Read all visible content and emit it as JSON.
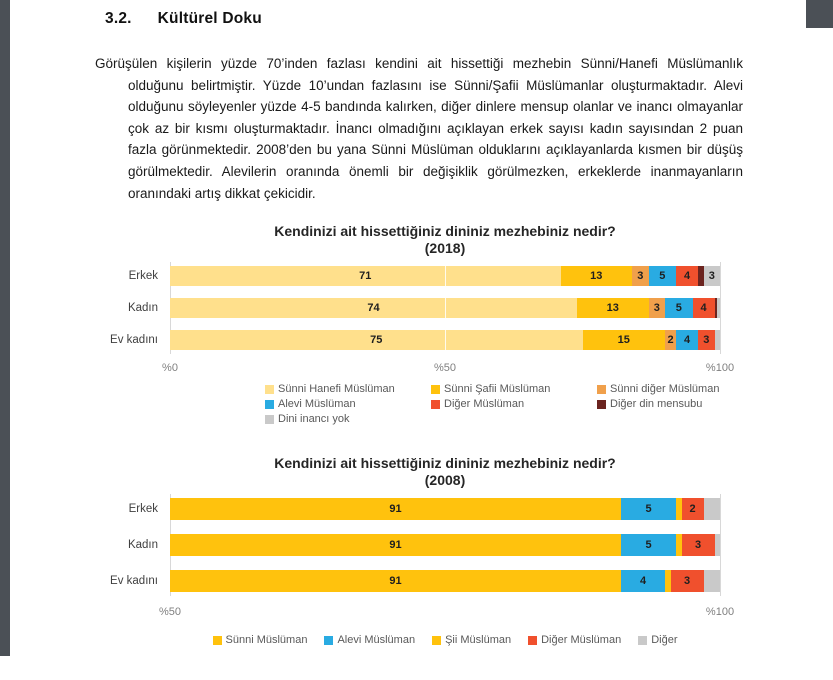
{
  "section": {
    "number": "3.2.",
    "title": "Kültürel Doku",
    "paragraph": "Görüşülen kişilerin yüzde 70’inden fazlası kendini ait hissettiği mezhebin Sünni/Hanefi Müslümanlık olduğunu belirtmiştir. Yüzde 10’undan fazlasını ise Sünni/Şafii Müslümanlar oluşturmaktadır. Alevi olduğunu söyleyenler yüzde 4-5 bandında kalırken, diğer dinlere mensup olanlar ve inancı olmayanlar çok az bir kısmı oluşturmaktadır. İnancı olmadığını açıklayan erkek sayısı kadın sayısından 2 puan fazla görünmektedir. 2008’den bu yana Sünni Müslüman olduklarını açıklayanlarda kısmen bir düşüş görülmektedir. Alevilerin oranında önemli bir değişiklik görülmezken, erkeklerde inanmayanların oranındaki artış dikkat çekicidir."
  },
  "theme": {
    "page_background": "#FFFFFF",
    "edge_shadow": "#4B5056",
    "body_text": "#1A1A1A",
    "axis_text": "#7F7F7F",
    "legend_text": "#595959",
    "grid_color": "#D8D8D8",
    "bar_label_color": "#1F1F1F"
  },
  "chart_data": [
    {
      "type": "bar",
      "orientation": "horizontal",
      "stacked": true,
      "title": "Kendinizi ait hissettiğiniz dininiz mezhebiniz nedir?",
      "subtitle": "(2018)",
      "categories": [
        "Erkek",
        "Kadın",
        "Ev kadını"
      ],
      "axis": {
        "min": 0,
        "max": 100,
        "ticks": [
          {
            "value": 0,
            "label": "%0"
          },
          {
            "value": 50,
            "label": "%50"
          },
          {
            "value": 100,
            "label": "%100"
          }
        ]
      },
      "grid": true,
      "legend_position": "bottom",
      "legend_layout": "grid",
      "label_min": 2,
      "series": [
        {
          "name": "Sünni Hanefi Müslüman",
          "color": "#FFE08C",
          "values": [
            71,
            74,
            75
          ]
        },
        {
          "name": "Sünni Şafii Müslüman",
          "color": "#FFC20D",
          "values": [
            13,
            13,
            15
          ]
        },
        {
          "name": "Sünni diğer Müslüman",
          "color": "#F0A04B",
          "values": [
            3,
            3,
            2
          ]
        },
        {
          "name": "Alevi Müslüman",
          "color": "#29ABE2",
          "values": [
            5,
            5,
            4
          ]
        },
        {
          "name": "Diğer Müslüman",
          "color": "#F0502D",
          "values": [
            4,
            4,
            3
          ]
        },
        {
          "name": "Diğer din mensubu",
          "color": "#6B241F",
          "values": [
            1,
            0.5,
            0
          ]
        },
        {
          "name": "Dini inancı yok",
          "color": "#C9C9C9",
          "values": [
            3,
            1,
            1
          ]
        }
      ]
    },
    {
      "type": "bar",
      "orientation": "horizontal",
      "stacked": true,
      "title": "Kendinizi ait hissettiğiniz dininiz mezhebiniz nedir?",
      "subtitle": "(2008)",
      "categories": [
        "Erkek",
        "Kadın",
        "Ev kadını"
      ],
      "axis": {
        "min": 50,
        "max": 100,
        "ticks": [
          {
            "value": 50,
            "label": "%50"
          },
          {
            "value": 100,
            "label": "%100"
          }
        ]
      },
      "grid": true,
      "legend_position": "bottom",
      "legend_layout": "row",
      "label_min": 2,
      "series": [
        {
          "name": "Sünni Müslüman",
          "color": "#FFC20D",
          "values": [
            91,
            91,
            91
          ]
        },
        {
          "name": "Alevi Müslüman",
          "color": "#29ABE2",
          "values": [
            5,
            5,
            4
          ]
        },
        {
          "name": "Şii Müslüman",
          "color": "#FFC20D",
          "values": [
            0.5,
            0.5,
            0.5
          ]
        },
        {
          "name": "Diğer Müslüman",
          "color": "#F0502D",
          "values": [
            2,
            3,
            3
          ]
        },
        {
          "name": "Diğer",
          "color": "#C9C9C9",
          "values": [
            1.5,
            1,
            1.5
          ]
        }
      ]
    }
  ]
}
